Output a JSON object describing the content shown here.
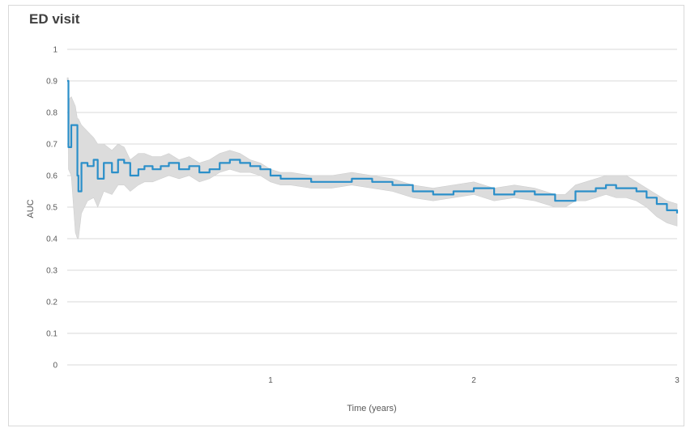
{
  "chart_data": {
    "type": "line",
    "title": "ED visit",
    "xlabel": "Time (years)",
    "ylabel": "AUC",
    "xlim": [
      0,
      3
    ],
    "ylim": [
      0,
      1
    ],
    "x_ticks": [
      1,
      2,
      3
    ],
    "y_ticks": [
      0,
      0.1,
      0.2,
      0.3,
      0.4,
      0.5,
      0.6,
      0.7,
      0.8,
      0.9,
      1
    ],
    "grid": "horizontal",
    "colors": {
      "line": "#2b8fc9",
      "band": "#dcdcdc",
      "grid": "#d9d9d9"
    },
    "series": [
      {
        "x": [
          0.0,
          0.005,
          0.006,
          0.02,
          0.04,
          0.05,
          0.055,
          0.07,
          0.1,
          0.13,
          0.15,
          0.18,
          0.22,
          0.25,
          0.28,
          0.31,
          0.35,
          0.38,
          0.42,
          0.46,
          0.5,
          0.55,
          0.6,
          0.65,
          0.7,
          0.75,
          0.8,
          0.85,
          0.9,
          0.95,
          1.0,
          1.05,
          1.1,
          1.2,
          1.3,
          1.4,
          1.5,
          1.6,
          1.7,
          1.8,
          1.9,
          2.0,
          2.1,
          2.2,
          2.3,
          2.4,
          2.45,
          2.5,
          2.55,
          2.6,
          2.65,
          2.7,
          2.75,
          2.8,
          2.85,
          2.9,
          2.95,
          3.0
        ],
        "y": [
          0.9,
          0.9,
          0.69,
          0.76,
          0.76,
          0.6,
          0.55,
          0.64,
          0.63,
          0.65,
          0.59,
          0.64,
          0.61,
          0.65,
          0.64,
          0.6,
          0.62,
          0.63,
          0.62,
          0.63,
          0.64,
          0.62,
          0.63,
          0.61,
          0.62,
          0.64,
          0.65,
          0.64,
          0.63,
          0.62,
          0.6,
          0.59,
          0.59,
          0.58,
          0.58,
          0.59,
          0.58,
          0.57,
          0.55,
          0.54,
          0.55,
          0.56,
          0.54,
          0.55,
          0.54,
          0.52,
          0.52,
          0.55,
          0.55,
          0.56,
          0.57,
          0.56,
          0.56,
          0.55,
          0.53,
          0.51,
          0.49,
          0.48
        ],
        "lower": [
          0.9,
          0.9,
          0.62,
          0.6,
          0.42,
          0.4,
          0.4,
          0.48,
          0.52,
          0.53,
          0.5,
          0.55,
          0.54,
          0.57,
          0.57,
          0.55,
          0.57,
          0.58,
          0.58,
          0.59,
          0.6,
          0.59,
          0.6,
          0.58,
          0.59,
          0.61,
          0.62,
          0.61,
          0.61,
          0.6,
          0.58,
          0.57,
          0.57,
          0.56,
          0.56,
          0.57,
          0.56,
          0.55,
          0.53,
          0.52,
          0.53,
          0.54,
          0.52,
          0.53,
          0.52,
          0.5,
          0.5,
          0.52,
          0.52,
          0.53,
          0.54,
          0.53,
          0.53,
          0.52,
          0.5,
          0.47,
          0.45,
          0.44
        ],
        "upper": [
          0.91,
          0.91,
          0.84,
          0.85,
          0.82,
          0.78,
          0.78,
          0.76,
          0.74,
          0.72,
          0.7,
          0.7,
          0.68,
          0.7,
          0.69,
          0.65,
          0.67,
          0.67,
          0.66,
          0.66,
          0.67,
          0.65,
          0.66,
          0.64,
          0.65,
          0.67,
          0.68,
          0.67,
          0.65,
          0.64,
          0.62,
          0.61,
          0.61,
          0.6,
          0.6,
          0.61,
          0.6,
          0.59,
          0.57,
          0.56,
          0.57,
          0.58,
          0.56,
          0.57,
          0.56,
          0.54,
          0.54,
          0.57,
          0.58,
          0.59,
          0.6,
          0.6,
          0.6,
          0.58,
          0.56,
          0.54,
          0.52,
          0.51
        ]
      }
    ]
  }
}
